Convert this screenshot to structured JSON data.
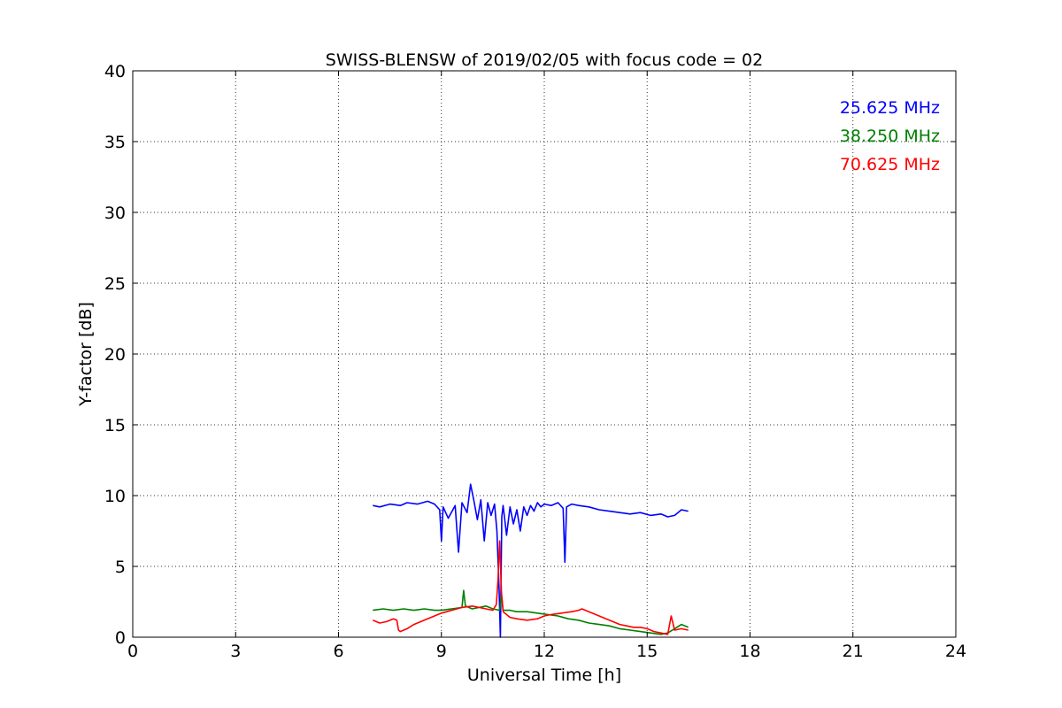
{
  "chart_data": {
    "type": "line",
    "title": "SWISS-BLENSW of 2019/02/05 with focus code = 02",
    "xlabel": "Universal Time [h]",
    "ylabel": "Y-factor [dB]",
    "xlim": [
      0,
      24
    ],
    "ylim": [
      0,
      40
    ],
    "xticks": [
      0,
      3,
      6,
      9,
      12,
      15,
      18,
      21,
      24
    ],
    "yticks": [
      0,
      5,
      10,
      15,
      20,
      25,
      30,
      35,
      40
    ],
    "grid": true,
    "legend_position": "top-right",
    "series": [
      {
        "name": "25.625 MHz",
        "color": "#0000ff",
        "x": [
          7.0,
          7.2,
          7.5,
          7.8,
          8.0,
          8.3,
          8.6,
          8.8,
          8.95,
          9.0,
          9.05,
          9.2,
          9.4,
          9.5,
          9.6,
          9.75,
          9.85,
          9.95,
          10.05,
          10.15,
          10.25,
          10.35,
          10.45,
          10.55,
          10.62,
          10.68,
          10.72,
          10.76,
          10.8,
          10.9,
          11.0,
          11.1,
          11.2,
          11.3,
          11.4,
          11.5,
          11.6,
          11.7,
          11.8,
          11.9,
          12.0,
          12.2,
          12.4,
          12.55,
          12.6,
          12.65,
          12.8,
          13.0,
          13.3,
          13.6,
          13.9,
          14.2,
          14.5,
          14.8,
          15.1,
          15.4,
          15.6,
          15.8,
          16.0,
          16.2
        ],
        "values": [
          9.3,
          9.2,
          9.4,
          9.3,
          9.5,
          9.4,
          9.6,
          9.4,
          9.0,
          6.8,
          9.2,
          8.4,
          9.3,
          6.0,
          9.5,
          8.8,
          10.8,
          9.6,
          8.3,
          9.7,
          6.8,
          9.5,
          8.6,
          9.4,
          7.5,
          3.5,
          0.0,
          8.5,
          9.3,
          7.2,
          9.2,
          8.0,
          9.0,
          7.5,
          9.2,
          8.6,
          9.3,
          8.9,
          9.5,
          9.2,
          9.4,
          9.3,
          9.5,
          9.1,
          5.3,
          9.2,
          9.4,
          9.3,
          9.2,
          9.0,
          8.9,
          8.8,
          8.7,
          8.8,
          8.6,
          8.7,
          8.5,
          8.6,
          9.0,
          8.9
        ]
      },
      {
        "name": "38.250 MHz",
        "color": "#008000",
        "x": [
          7.0,
          7.3,
          7.6,
          7.9,
          8.2,
          8.5,
          8.8,
          9.0,
          9.3,
          9.6,
          9.65,
          9.7,
          9.9,
          10.1,
          10.3,
          10.5,
          10.7,
          10.75,
          10.8,
          11.0,
          11.2,
          11.5,
          11.8,
          12.1,
          12.4,
          12.7,
          13.0,
          13.3,
          13.6,
          13.9,
          14.2,
          14.5,
          14.8,
          15.1,
          15.4,
          15.6,
          15.8,
          16.0,
          16.2
        ],
        "values": [
          1.9,
          2.0,
          1.9,
          2.0,
          1.9,
          2.0,
          1.9,
          1.9,
          2.0,
          2.1,
          3.3,
          2.2,
          2.0,
          2.1,
          2.2,
          2.0,
          1.9,
          3.0,
          1.9,
          1.9,
          1.8,
          1.8,
          1.7,
          1.6,
          1.5,
          1.3,
          1.2,
          1.0,
          0.9,
          0.8,
          0.6,
          0.5,
          0.4,
          0.3,
          0.2,
          0.3,
          0.6,
          0.9,
          0.7
        ]
      },
      {
        "name": "70.625 MHz",
        "color": "#ff0000",
        "x": [
          7.0,
          7.2,
          7.4,
          7.6,
          7.7,
          7.75,
          7.8,
          8.0,
          8.2,
          8.5,
          8.8,
          9.0,
          9.3,
          9.6,
          9.9,
          10.1,
          10.3,
          10.5,
          10.6,
          10.65,
          10.7,
          10.75,
          10.8,
          11.0,
          11.2,
          11.5,
          11.8,
          12.0,
          12.2,
          12.5,
          12.8,
          13.0,
          13.1,
          13.3,
          13.5,
          13.8,
          14.0,
          14.2,
          14.4,
          14.6,
          14.8,
          15.0,
          15.1,
          15.2,
          15.4,
          15.6,
          15.7,
          15.8,
          16.0,
          16.2
        ],
        "values": [
          1.2,
          1.0,
          1.1,
          1.3,
          1.2,
          0.5,
          0.4,
          0.6,
          0.9,
          1.2,
          1.5,
          1.7,
          1.9,
          2.1,
          2.2,
          2.1,
          2.0,
          1.9,
          2.3,
          4.0,
          6.8,
          3.2,
          1.8,
          1.4,
          1.3,
          1.2,
          1.3,
          1.5,
          1.6,
          1.7,
          1.8,
          1.9,
          2.0,
          1.8,
          1.6,
          1.3,
          1.1,
          0.9,
          0.8,
          0.7,
          0.7,
          0.6,
          0.5,
          0.4,
          0.3,
          0.2,
          1.5,
          0.5,
          0.6,
          0.5
        ]
      }
    ]
  }
}
